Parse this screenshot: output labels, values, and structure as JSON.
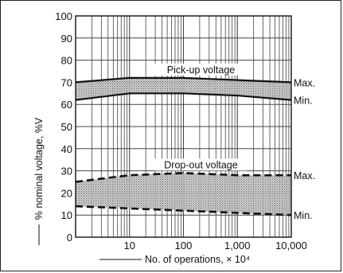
{
  "chart_data": {
    "type": "area",
    "xscale": "log",
    "xlim": [
      1,
      10000
    ],
    "ylim": [
      0,
      100
    ],
    "xlabel": "No. of operations, × 10⁴",
    "ylabel": "% nominal voltage, %V",
    "grid": true,
    "x_ticks": [
      10,
      100,
      1000,
      10000
    ],
    "x_tick_labels": [
      "10",
      "100",
      "1,000",
      "10,000"
    ],
    "y_ticks": [
      0,
      10,
      20,
      30,
      40,
      50,
      60,
      70,
      80,
      90,
      100
    ],
    "y_tick_labels": [
      "0",
      "10",
      "20",
      "30",
      "40",
      "50",
      "60",
      "70",
      "80",
      "90",
      "100"
    ],
    "bands": [
      {
        "name": "Pick-up voltage",
        "max_label": "Max.",
        "min_label": "Min.",
        "x": [
          1,
          10,
          100,
          1000,
          10000
        ],
        "max": [
          70,
          72,
          72,
          71,
          70
        ],
        "min": [
          62,
          65,
          65,
          64,
          62
        ]
      },
      {
        "name": "Drop-out voltage",
        "max_label": "Max.",
        "min_label": "Min.",
        "x": [
          1,
          10,
          100,
          1000,
          10000
        ],
        "max": [
          25,
          28,
          29,
          28,
          28
        ],
        "min": [
          14,
          13,
          12,
          11,
          10
        ]
      }
    ]
  }
}
